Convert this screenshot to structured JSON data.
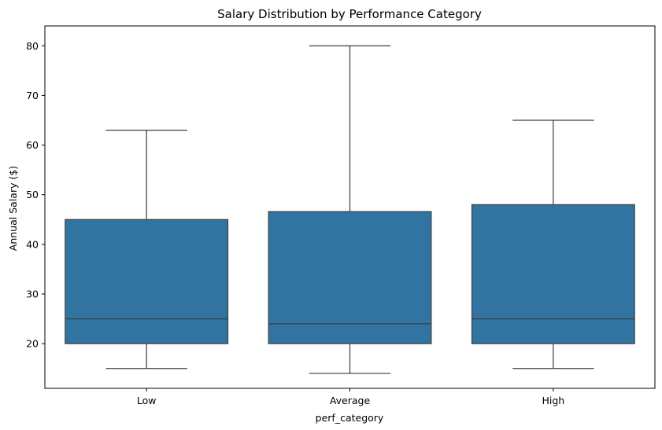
{
  "chart_data": {
    "type": "box",
    "title": "Salary Distribution by Performance Category",
    "xlabel": "perf_category",
    "ylabel": "Annual Salary ($)",
    "ylim": [
      11,
      84
    ],
    "yticks": [
      20,
      30,
      40,
      50,
      60,
      70,
      80
    ],
    "categories": [
      "Low",
      "Average",
      "High"
    ],
    "boxes": [
      {
        "category": "Low",
        "whisker_low": 15,
        "q1": 20,
        "median": 25,
        "q3": 45,
        "whisker_high": 63
      },
      {
        "category": "Average",
        "whisker_low": 14,
        "q1": 20,
        "median": 24,
        "q3": 46.6,
        "whisker_high": 80
      },
      {
        "category": "High",
        "whisker_low": 15,
        "q1": 20,
        "median": 25,
        "q3": 48,
        "whisker_high": 65
      }
    ],
    "box_color": "#3274a1",
    "line_color": "#3d3d3d",
    "grid": false
  }
}
